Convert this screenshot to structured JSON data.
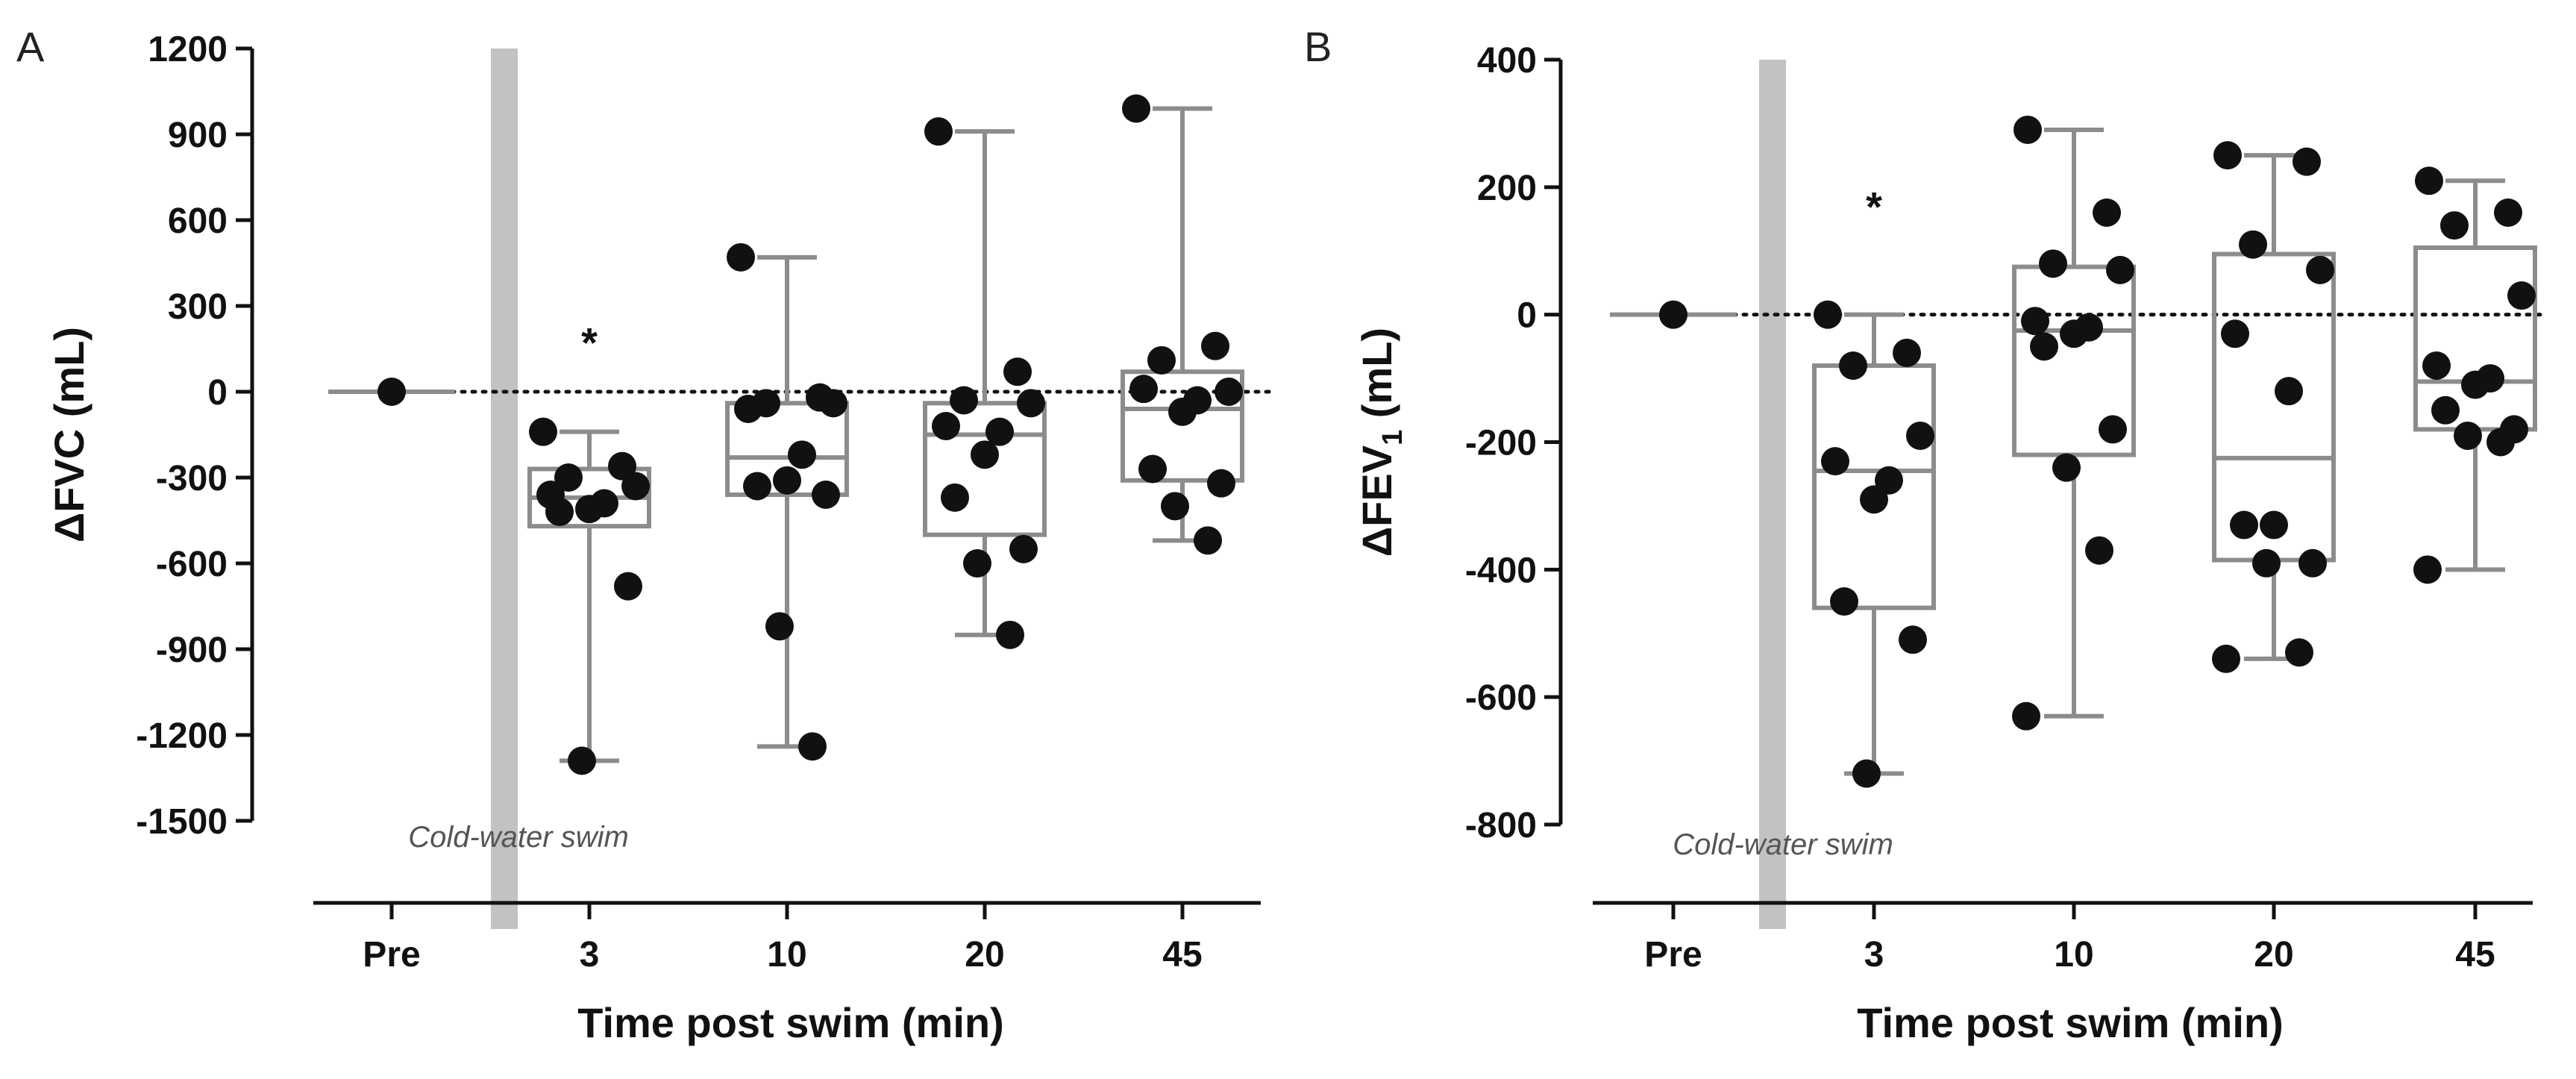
{
  "chart_data": [
    {
      "type": "box",
      "panel_label": "A",
      "title": "",
      "xlabel": "Time post swim (min)",
      "ylabel_prefix": "ΔFVC",
      "ylabel_sub": "",
      "ylabel_suffix": " (mL)",
      "ylim": [
        -1500,
        1200
      ],
      "yticks": [
        1200,
        900,
        600,
        300,
        0,
        -300,
        -600,
        -900,
        -1200,
        -1500
      ],
      "categories": [
        "Pre",
        "3",
        "10",
        "20",
        "45"
      ],
      "reference_line": 0,
      "intervention_label": "Cold-water swim",
      "significance": [
        {
          "category": "3",
          "symbol": "*"
        }
      ],
      "groups": [
        {
          "category": "Pre",
          "min": 0,
          "q1": 0,
          "median": 0,
          "q3": 0,
          "max": 0,
          "points": [
            0
          ]
        },
        {
          "category": "3",
          "min": -1290,
          "q1": -470,
          "median": -370,
          "q3": -270,
          "max": -140,
          "points": [
            -140,
            -260,
            -300,
            -330,
            -360,
            -390,
            -410,
            -420,
            -680,
            -1290
          ]
        },
        {
          "category": "10",
          "min": -1240,
          "q1": -360,
          "median": -230,
          "q3": -40,
          "max": 470,
          "points": [
            470,
            -20,
            -40,
            -40,
            -60,
            -220,
            -310,
            -330,
            -360,
            -820,
            -1240
          ]
        },
        {
          "category": "20",
          "min": -850,
          "q1": -500,
          "median": -150,
          "q3": -40,
          "max": 910,
          "points": [
            910,
            70,
            -30,
            -40,
            -120,
            -140,
            -220,
            -370,
            -550,
            -600,
            -850
          ]
        },
        {
          "category": "45",
          "min": -520,
          "q1": -310,
          "median": -60,
          "q3": 70,
          "max": 990,
          "points": [
            990,
            160,
            110,
            0,
            10,
            -30,
            -70,
            -270,
            -320,
            -400,
            -520
          ]
        }
      ]
    },
    {
      "type": "box",
      "panel_label": "B",
      "title": "",
      "xlabel": "Time post swim (min)",
      "ylabel_prefix": "ΔFEV",
      "ylabel_sub": "1",
      "ylabel_suffix": " (mL)",
      "ylim": [
        -800,
        400
      ],
      "yticks": [
        400,
        200,
        0,
        -200,
        -400,
        -600,
        -800
      ],
      "categories": [
        "Pre",
        "3",
        "10",
        "20",
        "45"
      ],
      "reference_line": 0,
      "intervention_label": "Cold-water swim",
      "significance": [
        {
          "category": "3",
          "symbol": "*"
        }
      ],
      "groups": [
        {
          "category": "Pre",
          "min": 0,
          "q1": 0,
          "median": 0,
          "q3": 0,
          "max": 0,
          "points": [
            0
          ]
        },
        {
          "category": "3",
          "min": -720,
          "q1": -460,
          "median": -245,
          "q3": -80,
          "max": 0,
          "points": [
            0,
            -60,
            -80,
            -190,
            -230,
            -260,
            -290,
            -450,
            -510,
            -720
          ]
        },
        {
          "category": "10",
          "min": -630,
          "q1": -220,
          "median": -25,
          "q3": 75,
          "max": 290,
          "points": [
            290,
            160,
            80,
            70,
            -10,
            -20,
            -30,
            -50,
            -180,
            -240,
            -370,
            -630
          ]
        },
        {
          "category": "20",
          "min": -540,
          "q1": -385,
          "median": -225,
          "q3": 95,
          "max": 250,
          "points": [
            250,
            240,
            110,
            70,
            -30,
            -120,
            -330,
            -330,
            -390,
            -390,
            -530,
            -540
          ]
        },
        {
          "category": "45",
          "min": -400,
          "q1": -180,
          "median": -105,
          "q3": 105,
          "max": 210,
          "points": [
            210,
            160,
            140,
            30,
            -80,
            -100,
            -110,
            -150,
            -180,
            -190,
            -200,
            -400
          ]
        }
      ]
    }
  ]
}
